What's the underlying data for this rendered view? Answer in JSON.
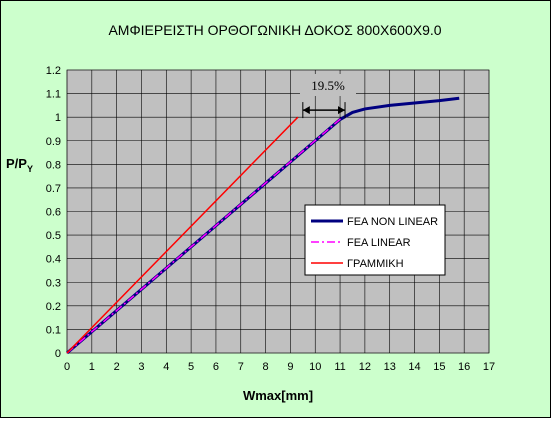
{
  "chart_data": {
    "type": "line",
    "title": "ΑΜΦΙΕΡΕΙΣΤΗ ΟΡΘΟΓΩΝΙΚΗ ΔΟΚΟΣ 800X600X9.0",
    "x_label": "Wmax[mm]",
    "y_label": {
      "main": "P/P",
      "sub": "Y"
    },
    "xlim": [
      0,
      17
    ],
    "xticks": [
      0,
      1,
      2,
      3,
      4,
      5,
      6,
      7,
      8,
      9,
      10,
      11,
      12,
      13,
      14,
      15,
      16,
      17
    ],
    "ylim": [
      0,
      1.2
    ],
    "yticks": [
      0,
      0.1,
      0.2,
      0.3,
      0.4,
      0.5,
      0.6,
      0.7,
      0.8,
      0.9,
      1,
      1.1,
      1.2
    ],
    "grid": true,
    "series": [
      {
        "name": "FEA NON LINEAR",
        "color": "#000080",
        "dash": "solid",
        "x": [
          0,
          1,
          2,
          3,
          4,
          5,
          6,
          7,
          8,
          9,
          10,
          11,
          11.5,
          12,
          13,
          14,
          15,
          15.8
        ],
        "values": [
          0,
          0.09,
          0.18,
          0.27,
          0.36,
          0.45,
          0.54,
          0.63,
          0.72,
          0.81,
          0.9,
          0.99,
          1.02,
          1.035,
          1.05,
          1.06,
          1.07,
          1.08
        ]
      },
      {
        "name": "FEA LINEAR",
        "color": "#ff00ff",
        "dash": "dashdot",
        "x": [
          0,
          11.1
        ],
        "values": [
          0,
          1.0
        ]
      },
      {
        "name": "ΓΡΑΜΜΙΚΗ",
        "color": "#ff0000",
        "dash": "solid",
        "x": [
          0,
          9.3
        ],
        "values": [
          0,
          1.0
        ]
      }
    ],
    "annotation": {
      "text": "19.5%",
      "x_from": 9.5,
      "x_to": 11.2,
      "y": 1.03
    },
    "legend": "right"
  }
}
